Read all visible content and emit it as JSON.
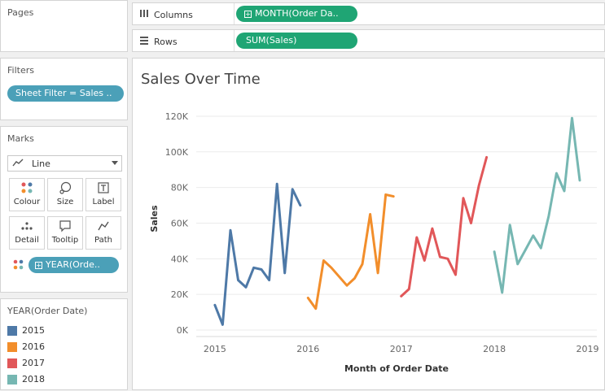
{
  "pages": {
    "title": "Pages"
  },
  "filters": {
    "title": "Filters",
    "pill": "Sheet Filter = Sales .."
  },
  "marks": {
    "title": "Marks",
    "type": "Line",
    "buttons": [
      "Colour",
      "Size",
      "Label",
      "Detail",
      "Tooltip",
      "Path"
    ],
    "color_pill": "YEAR(Orde.."
  },
  "legend": {
    "title": "YEAR(Order Date)",
    "items": [
      {
        "label": "2015",
        "color": "#4e79a7"
      },
      {
        "label": "2016",
        "color": "#f28e2b"
      },
      {
        "label": "2017",
        "color": "#e15759"
      },
      {
        "label": "2018",
        "color": "#76b7b2"
      }
    ]
  },
  "columns": {
    "label": "Columns",
    "pill": "MONTH(Order Da.."
  },
  "rows": {
    "label": "Rows",
    "pill": "SUM(Sales)"
  },
  "chart_data": {
    "type": "line",
    "title": "Sales Over Time",
    "xlabel": "Month of Order Date",
    "ylabel": "Sales",
    "xlim": [
      2014.8,
      2019.1
    ],
    "ylim": [
      0,
      125000
    ],
    "yticks": [
      0,
      20000,
      40000,
      60000,
      80000,
      100000,
      120000
    ],
    "ytick_labels": [
      "0K",
      "20K",
      "40K",
      "60K",
      "80K",
      "100K",
      "120K"
    ],
    "xticks": [
      2015,
      2016,
      2017,
      2018,
      2019
    ],
    "xtick_labels": [
      "2015",
      "2016",
      "2017",
      "2018",
      "2019"
    ],
    "grid": true,
    "series": [
      {
        "name": "2015",
        "color": "#4e79a7",
        "months": [
          1,
          2,
          3,
          4,
          5,
          6,
          7,
          8,
          9,
          10,
          11,
          12
        ],
        "values": [
          14000,
          3000,
          56000,
          28000,
          24000,
          35000,
          34000,
          28000,
          82000,
          32000,
          79000,
          70000
        ]
      },
      {
        "name": "2016",
        "color": "#f28e2b",
        "months": [
          1,
          2,
          3,
          4,
          5,
          6,
          7,
          8,
          9,
          10,
          11,
          12
        ],
        "values": [
          18000,
          12000,
          39000,
          35000,
          30000,
          25000,
          29000,
          37000,
          65000,
          32000,
          76000,
          75000
        ]
      },
      {
        "name": "2017",
        "color": "#e15759",
        "months": [
          1,
          2,
          3,
          4,
          5,
          6,
          7,
          8,
          9,
          10,
          11,
          12
        ],
        "values": [
          19000,
          23000,
          52000,
          39000,
          57000,
          41000,
          40000,
          31000,
          74000,
          60000,
          81000,
          97000
        ]
      },
      {
        "name": "2018",
        "color": "#76b7b2",
        "months": [
          1,
          2,
          3,
          4,
          5,
          6,
          7,
          8,
          9,
          10,
          11,
          12
        ],
        "values": [
          44000,
          21000,
          59000,
          37000,
          45000,
          53000,
          46000,
          64000,
          88000,
          78000,
          119000,
          84000
        ]
      }
    ]
  }
}
